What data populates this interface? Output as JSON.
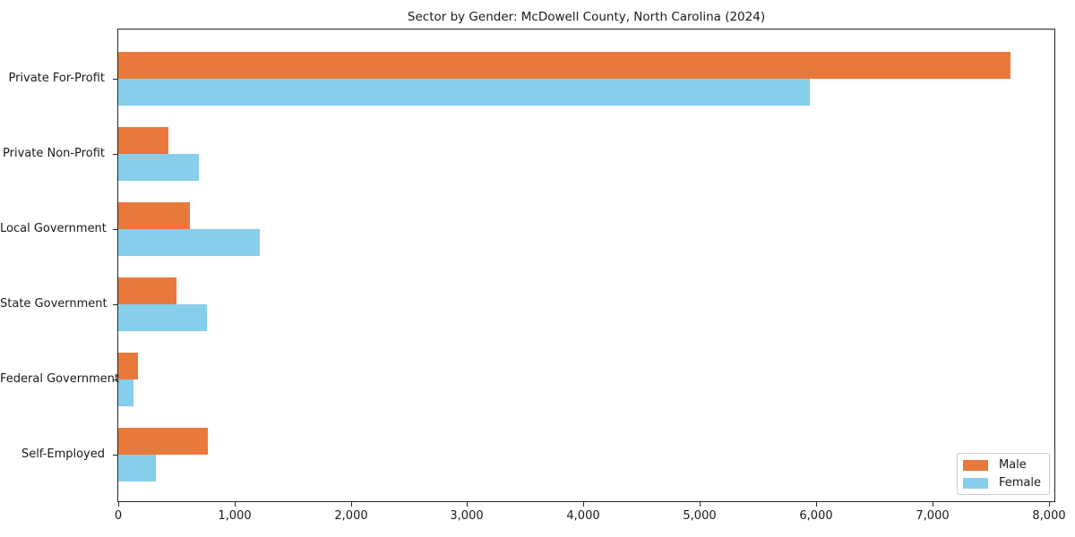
{
  "title": "Sector by Gender: McDowell County, North Carolina (2024)",
  "chart_data": {
    "type": "bar",
    "orientation": "horizontal",
    "title": "Sector by Gender: McDowell County, North Carolina (2024)",
    "categories": [
      "Private For-Profit",
      "Private Non-Profit",
      "Local Government",
      "State Government",
      "Federal Government",
      "Self-Employed"
    ],
    "series": [
      {
        "name": "Male",
        "color": "#e8793d",
        "values": [
          7670,
          430,
          615,
          500,
          170,
          770
        ]
      },
      {
        "name": "Female",
        "color": "#87ceeb",
        "values": [
          5950,
          690,
          1215,
          760,
          130,
          320
        ]
      }
    ],
    "xlabel": "",
    "ylabel": "",
    "xlim": [
      0,
      8050
    ],
    "xticks": [
      0,
      1000,
      2000,
      3000,
      4000,
      5000,
      6000,
      7000,
      8000
    ],
    "xtick_labels": [
      "0",
      "1,000",
      "2,000",
      "3,000",
      "4,000",
      "5,000",
      "6,000",
      "7,000",
      "8,000"
    ],
    "grid": false,
    "legend": {
      "position": "lower right",
      "entries": [
        "Male",
        "Female"
      ]
    },
    "colors": {
      "axis": "#262626",
      "text": "#1a1a1a",
      "background": "#ffffff"
    }
  }
}
